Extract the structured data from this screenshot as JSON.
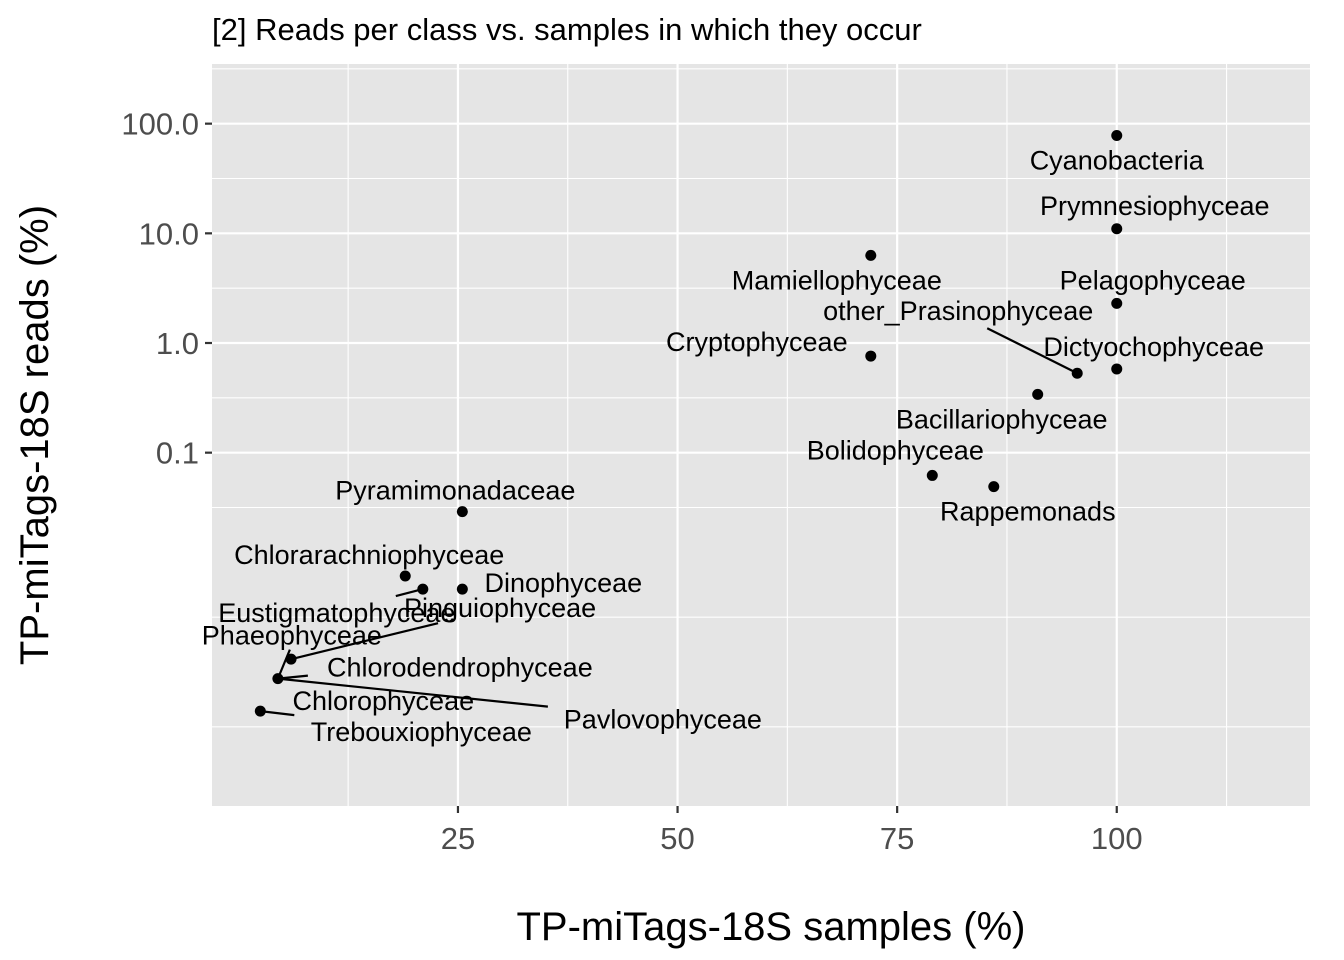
{
  "chart_data": {
    "type": "scatter",
    "title": "[2] Reads per class vs. samples in which they occur",
    "xlabel": "TP-miTags-18S samples (%)",
    "ylabel": "TP-miTags-18S reads (%)",
    "x_ticks": [
      {
        "value": 25,
        "label": "25"
      },
      {
        "value": 50,
        "label": "50"
      },
      {
        "value": 75,
        "label": "75"
      },
      {
        "value": 100,
        "label": "100"
      }
    ],
    "y_scale": "log10",
    "y_ticks": [
      {
        "value": 100,
        "label": "100.0"
      },
      {
        "value": 10,
        "label": "10.0"
      },
      {
        "value": 1,
        "label": "1.0"
      },
      {
        "value": 0.1,
        "label": "0.1"
      }
    ],
    "xlim": [
      -3,
      122
    ],
    "ylim": [
      6e-05,
      350
    ],
    "grid": true,
    "point_color": "#000000",
    "panel_color": "#e5e5e5",
    "points": [
      {
        "label": "Cyanobacteria",
        "x": 100,
        "y": 78
      },
      {
        "label": "Prymnesiophyceae",
        "x": 100,
        "y": 11
      },
      {
        "label": "Mamiellophyceae",
        "x": 72,
        "y": 6.3
      },
      {
        "label": "Pelagophyceae",
        "x": 100,
        "y": 2.3
      },
      {
        "label": "other_Prasinophyceae",
        "x": 95.5,
        "y": 0.53
      },
      {
        "label": "Cryptophyceae",
        "x": 72,
        "y": 0.76
      },
      {
        "label": "Dictyochophyceae",
        "x": 100,
        "y": 0.58
      },
      {
        "label": "Bacillariophyceae",
        "x": 91,
        "y": 0.34
      },
      {
        "label": "Bolidophyceae",
        "x": 79,
        "y": 0.062
      },
      {
        "label": "Rappemonads",
        "x": 86,
        "y": 0.049
      },
      {
        "label": "Pyramimonadaceae",
        "x": 25.5,
        "y": 0.029
      },
      {
        "label": "Chlorarachniophyceae",
        "x": 19,
        "y": 0.0075
      },
      {
        "label": "Eustigmatophyceae",
        "x": 21,
        "y": 0.0057
      },
      {
        "label": "Dinophyceae",
        "x": 25.5,
        "y": 0.0057
      },
      {
        "label": "Pinguiophyceae",
        "x": 6,
        "y": 0.00131
      },
      {
        "label": "Phaeophyceae",
        "x": 4.5,
        "y": 0.00087
      },
      {
        "label": "Chlorodendrophyceae",
        "x": 4.5,
        "y": 0.00087
      },
      {
        "label": "Pavlovophyceae",
        "x": 4.5,
        "y": 0.00087
      },
      {
        "label": "Chlorophyceae",
        "x": 2.5,
        "y": 0.00044
      },
      {
        "label": "Trebouxiophyceae",
        "x": 2.5,
        "y": 0.00044
      }
    ]
  }
}
